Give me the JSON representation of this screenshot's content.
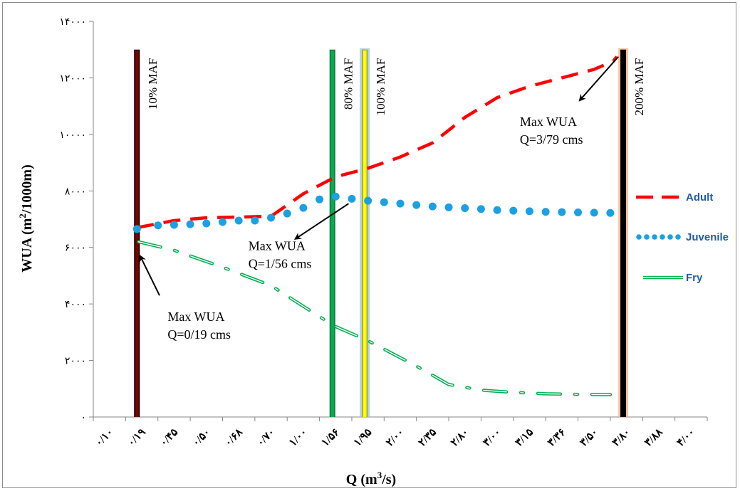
{
  "chart_data": {
    "type": "line",
    "xlabel": "Q (m³/s)",
    "xlabel_base": "Q (m",
    "xlabel_sup": "3",
    "xlabel_tail": "/s)",
    "ylabel_base": "WUA (m",
    "ylabel_sup": "2",
    "ylabel_tail": "/1000m)",
    "ylim": [
      0,
      14000
    ],
    "yticks": [
      0,
      2000,
      4000,
      6000,
      8000,
      10000,
      12000,
      14000
    ],
    "ytick_labels": [
      "۰",
      "۲۰۰۰",
      "۴۰۰۰",
      "۶۰۰۰",
      "۸۰۰۰",
      "۱۰۰۰۰",
      "۱۲۰۰۰",
      "۱۴۰۰۰"
    ],
    "categories": [
      "۰/۱۰",
      "۰/۱۹",
      "۰/۴۵",
      "۰/۵۰",
      "۰/۶۸",
      "۰/۷۰",
      "۱/۰۰",
      "۱/۵۶",
      "۱/۹۵",
      "۲/۰۰",
      "۲/۳۵",
      "۲/۸۰",
      "۳/۰۰",
      "۳/۱۵",
      "۳/۳۶",
      "۳/۵۰",
      "۳/۸۰",
      "۳/۸۸",
      "۴/۰۰"
    ],
    "x_numeric": [
      0.1,
      0.19,
      0.45,
      0.5,
      0.68,
      0.7,
      1.0,
      1.56,
      1.95,
      2.0,
      2.35,
      2.8,
      3.0,
      3.15,
      3.36,
      3.5,
      3.8,
      3.88,
      4.0
    ],
    "legend_placement": "right",
    "grid": false,
    "series": [
      {
        "name": "Adult",
        "color": "#ff0000",
        "style": "dash",
        "points": [
          [
            1.35,
            6700
          ],
          [
            2.5,
            6950
          ],
          [
            3.5,
            7050
          ],
          [
            5.5,
            7100
          ],
          [
            6.5,
            7900
          ],
          [
            7.5,
            8500
          ],
          [
            8.5,
            8800
          ],
          [
            9.5,
            9200
          ],
          [
            10.5,
            9700
          ],
          [
            11.5,
            10600
          ],
          [
            12.5,
            11300
          ],
          [
            13.5,
            11700
          ],
          [
            14.5,
            12000
          ],
          [
            15.5,
            12300
          ],
          [
            16.1,
            12600
          ],
          [
            16.2,
            12750
          ]
        ]
      },
      {
        "name": "Juvenile",
        "color": "#1ba1e2",
        "style": "dot",
        "points": [
          [
            1.35,
            6650
          ],
          [
            2.0,
            6780
          ],
          [
            2.5,
            6800
          ],
          [
            3.0,
            6820
          ],
          [
            3.5,
            6850
          ],
          [
            4.0,
            6900
          ],
          [
            4.5,
            6950
          ],
          [
            5.0,
            6950
          ],
          [
            5.5,
            7050
          ],
          [
            6.0,
            7200
          ],
          [
            6.5,
            7400
          ],
          [
            7.0,
            7700
          ],
          [
            7.5,
            7800
          ],
          [
            8.0,
            7720
          ],
          [
            8.5,
            7650
          ],
          [
            9.0,
            7600
          ],
          [
            9.5,
            7550
          ],
          [
            10.0,
            7500
          ],
          [
            10.5,
            7450
          ],
          [
            11.0,
            7420
          ],
          [
            11.5,
            7390
          ],
          [
            12.0,
            7360
          ],
          [
            12.5,
            7320
          ],
          [
            13.0,
            7300
          ],
          [
            13.5,
            7280
          ],
          [
            14.0,
            7260
          ],
          [
            14.5,
            7250
          ],
          [
            15.0,
            7240
          ],
          [
            15.5,
            7230
          ],
          [
            16.0,
            7220
          ]
        ]
      },
      {
        "name": "Fry",
        "color": "#00b050",
        "style": "dash-dot",
        "points": [
          [
            1.4,
            6200
          ],
          [
            2.5,
            5900
          ],
          [
            4.0,
            5300
          ],
          [
            5.5,
            4650
          ],
          [
            7.0,
            3550
          ],
          [
            7.5,
            3200
          ],
          [
            8.0,
            2950
          ],
          [
            8.5,
            2700
          ],
          [
            10.0,
            1800
          ],
          [
            11.0,
            1150
          ],
          [
            12.0,
            950
          ],
          [
            13.0,
            870
          ],
          [
            14.0,
            820
          ],
          [
            15.0,
            800
          ],
          [
            16.0,
            790
          ]
        ]
      }
    ],
    "reference_lines": [
      {
        "label": "10% MAF",
        "x": 1.35,
        "color": "#800000",
        "border": "#000000"
      },
      {
        "label": "80% MAF",
        "x": 7.4,
        "color": "#00b050",
        "border": "#1a6b3a"
      },
      {
        "label": "100% MAF",
        "x": 8.4,
        "color": "#ffff00",
        "border": "#999933",
        "glow": "#9dc3e6"
      },
      {
        "label": "200% MAF",
        "x": 16.4,
        "color": "#000000",
        "border": "#000000",
        "glow": "#f4b183"
      }
    ],
    "annotations": [
      {
        "line1": "Max WUA",
        "line2": "Q=0/19 cms",
        "arrow_from": [
          2.05,
          4300
        ],
        "arrow_to": [
          1.45,
          5700
        ],
        "text_at": [
          2.3,
          3400
        ]
      },
      {
        "line1": "Max WUA",
        "line2": "Q=1/56 cms",
        "arrow_from": [
          7.9,
          7550
        ],
        "arrow_to": [
          6.25,
          6300
        ],
        "text_at": [
          4.8,
          5900
        ]
      },
      {
        "line1": "Max WUA",
        "line2": "Q=3/79 cms",
        "arrow_from": [
          16.25,
          12750
        ],
        "arrow_to": [
          15.05,
          11200
        ],
        "text_at": [
          13.2,
          10300
        ]
      }
    ]
  }
}
